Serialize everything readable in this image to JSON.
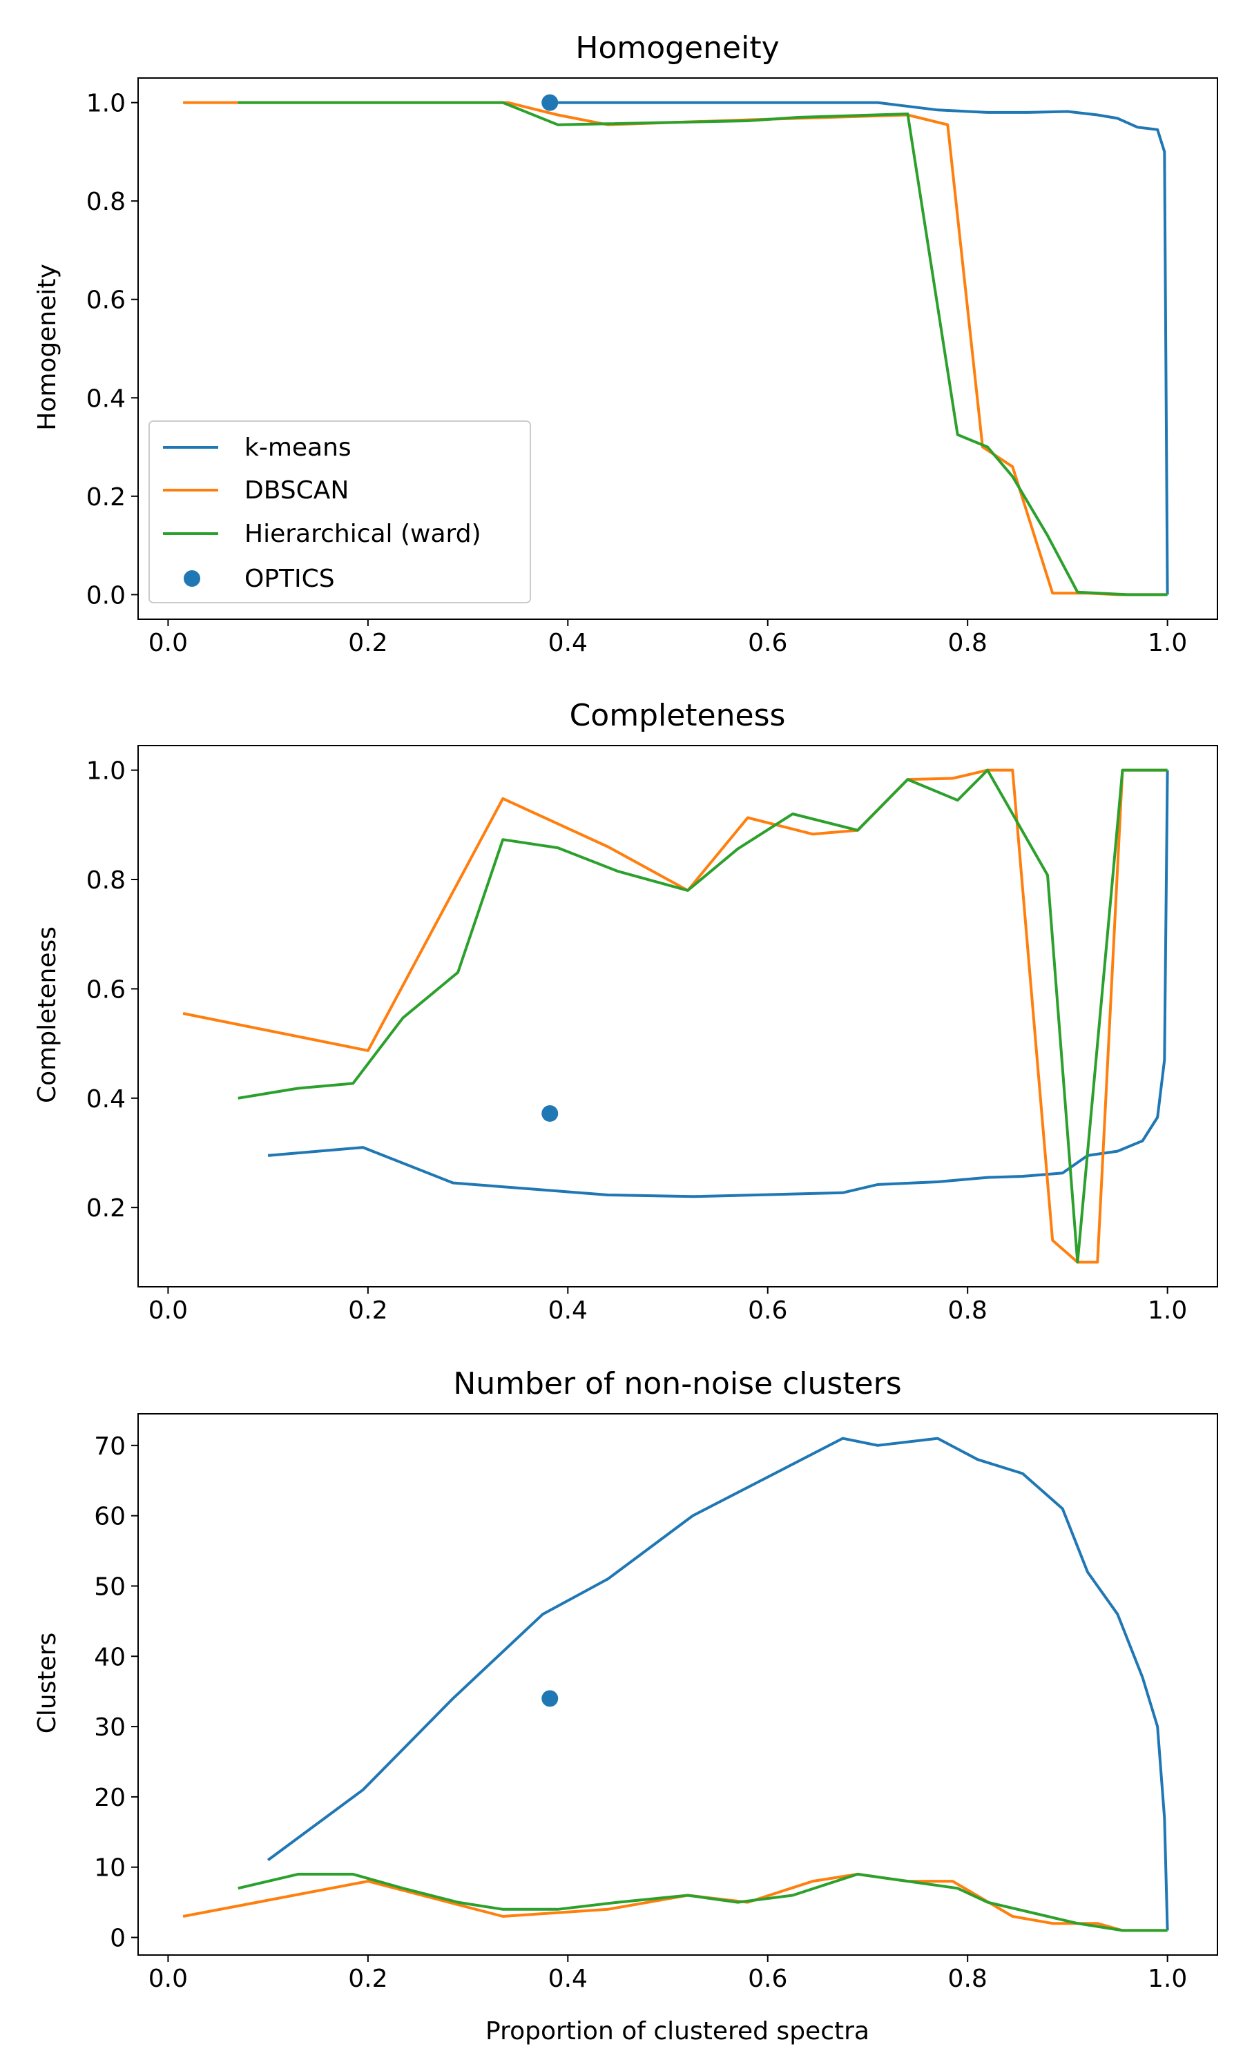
{
  "chart_data": [
    {
      "type": "line",
      "title": "Homogeneity",
      "xlabel": "",
      "ylabel": "Homogeneity",
      "xlim": [
        -0.03,
        1.05
      ],
      "ylim": [
        -0.05,
        1.05
      ],
      "xticks": [
        "0.0",
        "0.2",
        "0.4",
        "0.6",
        "0.8",
        "1.0"
      ],
      "yticks": [
        "0.0",
        "0.2",
        "0.4",
        "0.6",
        "0.8",
        "1.0"
      ],
      "legend": {
        "position": "lower-left",
        "labels": [
          "k-means",
          "DBSCAN",
          "Hierarchical (ward)",
          "OPTICS"
        ]
      },
      "series": [
        {
          "name": "k-means",
          "color": "#1f77b4",
          "x": [
            0.38,
            0.5,
            0.6,
            0.71,
            0.73,
            0.77,
            0.82,
            0.86,
            0.9,
            0.93,
            0.95,
            0.97,
            0.99,
            0.997,
            1.0
          ],
          "y": [
            1.0,
            1.0,
            1.0,
            1.0,
            0.995,
            0.985,
            0.98,
            0.98,
            0.982,
            0.975,
            0.968,
            0.95,
            0.945,
            0.9,
            0.0
          ]
        },
        {
          "name": "DBSCAN",
          "color": "#ff7f0e",
          "x": [
            0.015,
            0.07,
            0.34,
            0.39,
            0.44,
            0.58,
            0.74,
            0.78,
            0.815,
            0.845,
            0.885,
            0.92,
            0.95,
            1.0
          ],
          "y": [
            1.0,
            1.0,
            1.0,
            0.975,
            0.955,
            0.965,
            0.975,
            0.955,
            0.3,
            0.26,
            0.003,
            0.003,
            0.0,
            0.0
          ]
        },
        {
          "name": "Hierarchical (ward)",
          "color": "#2ca02c",
          "x": [
            0.07,
            0.2,
            0.335,
            0.39,
            0.44,
            0.58,
            0.63,
            0.74,
            0.79,
            0.82,
            0.845,
            0.88,
            0.91,
            0.96,
            1.0
          ],
          "y": [
            1.0,
            1.0,
            1.0,
            0.955,
            0.957,
            0.963,
            0.97,
            0.977,
            0.325,
            0.3,
            0.24,
            0.12,
            0.005,
            0.0,
            0.0
          ]
        }
      ],
      "points": [
        {
          "name": "OPTICS",
          "color": "#1f77b4",
          "x": 0.382,
          "y": 1.0
        }
      ]
    },
    {
      "type": "line",
      "title": "Completeness",
      "xlabel": "",
      "ylabel": "Completeness",
      "xlim": [
        -0.03,
        1.05
      ],
      "ylim": [
        0.055,
        1.045
      ],
      "xticks": [
        "0.0",
        "0.2",
        "0.4",
        "0.6",
        "0.8",
        "1.0"
      ],
      "yticks": [
        "0.2",
        "0.4",
        "0.6",
        "0.8",
        "1.0"
      ],
      "series": [
        {
          "name": "k-means",
          "color": "#1f77b4",
          "x": [
            0.1,
            0.195,
            0.285,
            0.44,
            0.525,
            0.675,
            0.71,
            0.77,
            0.82,
            0.855,
            0.895,
            0.92,
            0.95,
            0.975,
            0.99,
            0.997,
            1.0
          ],
          "y": [
            0.295,
            0.31,
            0.245,
            0.223,
            0.22,
            0.227,
            0.242,
            0.247,
            0.255,
            0.257,
            0.263,
            0.295,
            0.303,
            0.322,
            0.365,
            0.47,
            1.0
          ]
        },
        {
          "name": "DBSCAN",
          "color": "#ff7f0e",
          "x": [
            0.015,
            0.2,
            0.335,
            0.44,
            0.52,
            0.58,
            0.645,
            0.69,
            0.74,
            0.785,
            0.82,
            0.845,
            0.885,
            0.91,
            0.93,
            0.955,
            1.0
          ],
          "y": [
            0.555,
            0.487,
            0.948,
            0.86,
            0.78,
            0.913,
            0.883,
            0.89,
            0.983,
            0.985,
            1.0,
            1.0,
            0.14,
            0.1,
            0.1,
            1.0,
            1.0
          ]
        },
        {
          "name": "Hierarchical (ward)",
          "color": "#2ca02c",
          "x": [
            0.07,
            0.13,
            0.185,
            0.235,
            0.29,
            0.335,
            0.39,
            0.45,
            0.52,
            0.57,
            0.625,
            0.69,
            0.74,
            0.79,
            0.82,
            0.88,
            0.91,
            0.955,
            1.0
          ],
          "y": [
            0.4,
            0.418,
            0.427,
            0.547,
            0.63,
            0.873,
            0.858,
            0.815,
            0.78,
            0.856,
            0.92,
            0.89,
            0.983,
            0.945,
            1.0,
            0.808,
            0.1,
            1.0,
            1.0
          ]
        }
      ],
      "points": [
        {
          "name": "OPTICS",
          "color": "#1f77b4",
          "x": 0.382,
          "y": 0.372
        }
      ]
    },
    {
      "type": "line",
      "title": "Number of non-noise clusters",
      "xlabel": "Proportion of clustered spectra",
      "ylabel": "Clusters",
      "xlim": [
        -0.03,
        1.05
      ],
      "ylim": [
        -2.5,
        74.5
      ],
      "xticks": [
        "0.0",
        "0.2",
        "0.4",
        "0.6",
        "0.8",
        "1.0"
      ],
      "yticks": [
        "0",
        "10",
        "20",
        "30",
        "40",
        "50",
        "60",
        "70"
      ],
      "series": [
        {
          "name": "k-means",
          "color": "#1f77b4",
          "x": [
            0.1,
            0.195,
            0.285,
            0.375,
            0.44,
            0.525,
            0.6,
            0.675,
            0.71,
            0.77,
            0.81,
            0.855,
            0.895,
            0.92,
            0.95,
            0.975,
            0.99,
            0.997,
            1.0
          ],
          "y": [
            11,
            21,
            34,
            46,
            51,
            60,
            65.5,
            71,
            70,
            71,
            68,
            66,
            61,
            52,
            46,
            37,
            30,
            17,
            1
          ]
        },
        {
          "name": "DBSCAN",
          "color": "#ff7f0e",
          "x": [
            0.015,
            0.2,
            0.335,
            0.44,
            0.52,
            0.58,
            0.645,
            0.69,
            0.74,
            0.785,
            0.845,
            0.885,
            0.93,
            0.955,
            1.0
          ],
          "y": [
            3,
            8,
            3,
            4,
            6,
            5,
            8,
            9,
            8,
            8,
            3,
            2,
            2,
            1,
            1
          ]
        },
        {
          "name": "Hierarchical (ward)",
          "color": "#2ca02c",
          "x": [
            0.07,
            0.13,
            0.185,
            0.235,
            0.29,
            0.335,
            0.39,
            0.45,
            0.52,
            0.57,
            0.625,
            0.69,
            0.74,
            0.79,
            0.82,
            0.88,
            0.91,
            0.955,
            1.0
          ],
          "y": [
            7,
            9,
            9,
            7,
            5,
            4,
            4,
            5,
            6,
            5,
            6,
            9,
            8,
            7,
            5,
            3,
            2,
            1,
            1
          ]
        }
      ],
      "points": [
        {
          "name": "OPTICS",
          "color": "#1f77b4",
          "x": 0.382,
          "y": 34
        }
      ]
    }
  ]
}
